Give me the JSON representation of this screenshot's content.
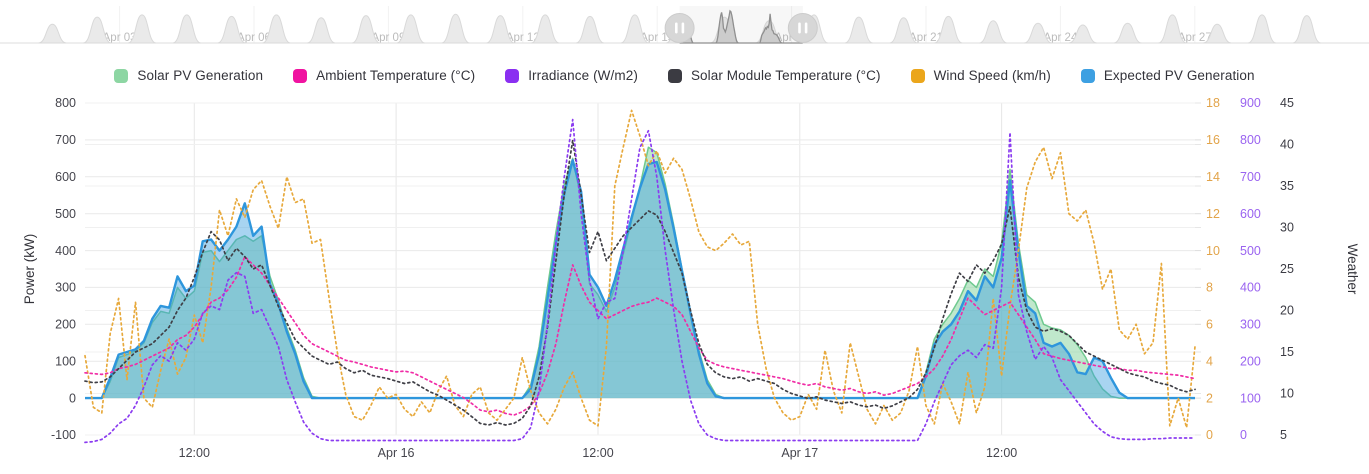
{
  "legend": {
    "items": [
      {
        "label": "Solar PV Generation",
        "color": "#8dd6a3"
      },
      {
        "label": "Ambient Temperature (°C)",
        "color": "#f013a0"
      },
      {
        "label": "Irradiance (W/m2)",
        "color": "#8a2ff1"
      },
      {
        "label": "Solar Module Temperature (°C)",
        "color": "#3b3b42"
      },
      {
        "label": "Wind Speed (km/h)",
        "color": "#eba61b"
      },
      {
        "label": "Expected PV Generation",
        "color": "#3da0e2"
      }
    ]
  },
  "chart_data": {
    "type": "line",
    "title": "",
    "x_axis": {
      "tick_labels": [
        "12:00",
        "Apr 16",
        "12:00",
        "Apr 17",
        "12:00"
      ],
      "tick_hours": [
        12,
        24,
        36,
        48,
        60
      ],
      "range_hours": [
        5.5,
        71.5
      ],
      "t_start": 5.5,
      "t_step": 0.5
    },
    "y_axes": {
      "power": {
        "title": "Power (kW)",
        "min": -100,
        "max": 800,
        "step": 100,
        "label_color": "#45454d",
        "side": "left"
      },
      "wind": {
        "title": "Wind Speed (km/h)",
        "min": 0,
        "max": 18,
        "step": 2,
        "label_color": "#e2a44a",
        "side": "right"
      },
      "irradiance": {
        "title": "Irradiance (W/m2)",
        "min": 0,
        "max": 900,
        "step": 100,
        "label_color": "#9a63f0",
        "side": "right"
      },
      "weather": {
        "title": "Weather",
        "min": 5,
        "max": 45,
        "step": 5,
        "label_color": "#3c3c44",
        "side": "right"
      }
    },
    "series": [
      {
        "name": "Solar PV Generation",
        "axis": "power",
        "style": "area",
        "line_color": "#6fc98f",
        "fill_color": "rgba(141,214,163,0.55)",
        "values": [
          0,
          0,
          0,
          45,
          110,
          118,
          128,
          150,
          205,
          235,
          230,
          300,
          270,
          290,
          395,
          400,
          370,
          400,
          430,
          440,
          425,
          440,
          330,
          265,
          190,
          130,
          55,
          5,
          0,
          0,
          0,
          0,
          0,
          0,
          0,
          0,
          0,
          0,
          0,
          0,
          0,
          0,
          0,
          0,
          0,
          0,
          0,
          0,
          0,
          0,
          0,
          0,
          0,
          35,
          140,
          300,
          450,
          580,
          650,
          540,
          310,
          280,
          235,
          300,
          390,
          480,
          575,
          680,
          665,
          580,
          470,
          350,
          235,
          130,
          50,
          10,
          0,
          0,
          0,
          0,
          0,
          0,
          0,
          0,
          0,
          0,
          0,
          0,
          0,
          0,
          0,
          0,
          0,
          0,
          0,
          0,
          0,
          0,
          0,
          0,
          70,
          160,
          200,
          230,
          270,
          320,
          300,
          350,
          330,
          420,
          620,
          420,
          280,
          260,
          200,
          190,
          185,
          170,
          145,
          110,
          60,
          25,
          5,
          0,
          0,
          0,
          0,
          0,
          0,
          0,
          0,
          0,
          0
        ]
      },
      {
        "name": "Expected PV Generation",
        "axis": "power",
        "style": "area",
        "line_color": "#2e96dc",
        "fill_color": "rgba(62,160,224,0.45)",
        "values": [
          0,
          0,
          0,
          55,
          118,
          125,
          132,
          155,
          215,
          250,
          245,
          330,
          290,
          305,
          425,
          430,
          400,
          430,
          465,
          528,
          440,
          465,
          310,
          255,
          180,
          120,
          45,
          0,
          0,
          0,
          0,
          0,
          0,
          0,
          0,
          0,
          0,
          0,
          0,
          0,
          0,
          0,
          0,
          0,
          0,
          0,
          0,
          0,
          0,
          0,
          0,
          0,
          0,
          25,
          120,
          270,
          420,
          555,
          645,
          560,
          335,
          300,
          250,
          320,
          405,
          490,
          570,
          635,
          640,
          565,
          460,
          345,
          230,
          120,
          40,
          5,
          0,
          0,
          0,
          0,
          0,
          0,
          0,
          0,
          0,
          0,
          0,
          0,
          0,
          0,
          0,
          0,
          0,
          0,
          0,
          0,
          0,
          0,
          0,
          0,
          60,
          145,
          180,
          200,
          235,
          290,
          265,
          330,
          300,
          380,
          590,
          400,
          250,
          230,
          150,
          140,
          150,
          120,
          70,
          65,
          110,
          100,
          55,
          15,
          0,
          0,
          0,
          0,
          0,
          0,
          0,
          0,
          0
        ]
      },
      {
        "name": "Wind Speed (km/h)",
        "axis": "wind",
        "style": "dotted",
        "line_color": "#e7a93c",
        "values": [
          4.3,
          1.5,
          1.2,
          5.5,
          7.4,
          3,
          7.2,
          2,
          1.5,
          3.5,
          5.2,
          3.3,
          4.2,
          6.5,
          5,
          8,
          12.2,
          10.8,
          12.8,
          11.8,
          13.3,
          13.8,
          12.4,
          11.2,
          14,
          12.6,
          12.8,
          10.4,
          10.6,
          7.5,
          4.5,
          2.2,
          1,
          0.8,
          1.6,
          2.6,
          2,
          2.2,
          1.4,
          1,
          1.8,
          1.2,
          2.4,
          3.2,
          1.6,
          1,
          2.2,
          2.6,
          1.2,
          0.8,
          1.4,
          2,
          4.2,
          2.4,
          1.2,
          0.6,
          1.4,
          2.6,
          3.4,
          2,
          0.8,
          0.5,
          4.8,
          13.5,
          15.6,
          17.6,
          16.2,
          14.6,
          15.4,
          14.2,
          15,
          14.4,
          12.8,
          11,
          10.2,
          10,
          10.4,
          10.9,
          10.3,
          10.5,
          6,
          3.6,
          2,
          1.2,
          0.8,
          1,
          2.2,
          1.4,
          4.6,
          2.4,
          1.2,
          5,
          3.2,
          1.4,
          0.6,
          1.6,
          0.8,
          1.2,
          2.4,
          4.8,
          1.6,
          0.6,
          2.8,
          1.8,
          0.6,
          3.4,
          1.2,
          2.6,
          7.4,
          3.2,
          7,
          10,
          13.4,
          14.8,
          15.6,
          13.9,
          15.3,
          12,
          11.6,
          12.2,
          10.4,
          7.9,
          9,
          5.7,
          5.2,
          6,
          4.4,
          5,
          9.3,
          0.5,
          2,
          0.4,
          4.8
        ]
      },
      {
        "name": "Ambient Temperature (°C)",
        "axis": "weather",
        "style": "dotted",
        "line_color": "#f02da6",
        "values": [
          12.5,
          12.4,
          12.3,
          12.5,
          13,
          13.2,
          13.5,
          14,
          14.5,
          15,
          15.5,
          16.5,
          17,
          18,
          19.5,
          21,
          21.5,
          22.5,
          24,
          26.5,
          25.5,
          24.5,
          23,
          21.5,
          20,
          18.5,
          17,
          16,
          15.5,
          15,
          14.5,
          14,
          13.8,
          13.5,
          13.2,
          13,
          12.8,
          12.6,
          12.7,
          12.5,
          12,
          11.5,
          11,
          10.5,
          10,
          9.5,
          8.8,
          8,
          7.8,
          8,
          7.6,
          7.4,
          7.8,
          8.5,
          10,
          12.5,
          16,
          21,
          25.5,
          23,
          21,
          20,
          19,
          19.5,
          20,
          20.5,
          20.8,
          21,
          21.5,
          21,
          20.5,
          19.5,
          17.5,
          15.5,
          14,
          13.5,
          13.2,
          13,
          12.8,
          12.6,
          12.4,
          12.2,
          12,
          11.8,
          11.5,
          11.2,
          11,
          11.2,
          10.8,
          10.6,
          10.4,
          10.6,
          10.2,
          10,
          10.2,
          9.8,
          10,
          10.4,
          10.8,
          11.2,
          12,
          13,
          14.5,
          16.5,
          19,
          21.5,
          20.5,
          19.5,
          20,
          20.5,
          21,
          19.5,
          18,
          16.5,
          14.8,
          14.5,
          14.2,
          14,
          13.8,
          13.6,
          13.4,
          13.2,
          13,
          13,
          12.8,
          12.8,
          12.6,
          12.5,
          12.4,
          12.3,
          12.2,
          12,
          11.8
        ]
      },
      {
        "name": "Solar Module Temperature (°C)",
        "axis": "weather",
        "style": "dotted",
        "line_color": "#3f3f46",
        "values": [
          11.5,
          11.3,
          11.4,
          12,
          13,
          14,
          15,
          15.5,
          16,
          17,
          18,
          20,
          21.5,
          24,
          27,
          29.5,
          28.5,
          26,
          27.5,
          26.5,
          25,
          25.5,
          23,
          20.5,
          18.5,
          16.5,
          15.5,
          14.5,
          14,
          13.5,
          13.8,
          13,
          12.5,
          12.8,
          12.2,
          12,
          11.8,
          11.5,
          11.2,
          11.4,
          10.8,
          10.2,
          9.8,
          9.2,
          8.6,
          8,
          7.2,
          6.4,
          6.2,
          6.5,
          6.2,
          6.4,
          7,
          8.5,
          12,
          18,
          26,
          34,
          40.5,
          34,
          27,
          29.5,
          26,
          27.5,
          29,
          30,
          31,
          32,
          31.5,
          29.5,
          27,
          24.5,
          20,
          16,
          13.5,
          12.5,
          12,
          11.8,
          12,
          11.5,
          11.8,
          11.5,
          11.2,
          10.5,
          10,
          9.7,
          9.4,
          9.6,
          9.2,
          9,
          8.8,
          9,
          8.6,
          8.4,
          8.6,
          8.2,
          8.5,
          9,
          9.5,
          10.5,
          12.5,
          15.5,
          19,
          22,
          24.5,
          23.5,
          25.5,
          24.5,
          26,
          28,
          32.5,
          24,
          20,
          18,
          17.5,
          17.8,
          17.5,
          17,
          16,
          15,
          14.5,
          14,
          13.5,
          13,
          12.5,
          12.2,
          12,
          11.5,
          11.2,
          11,
          10.5,
          10.2,
          10.5
        ]
      },
      {
        "name": "Irradiance (W/m2)",
        "axis": "irradiance",
        "style": "dotted",
        "line_color": "#8b3cf0",
        "values": [
          -20,
          -18,
          -12,
          5,
          30,
          45,
          80,
          130,
          190,
          215,
          200,
          250,
          230,
          260,
          330,
          350,
          340,
          420,
          440,
          430,
          330,
          340,
          290,
          240,
          150,
          90,
          35,
          5,
          -10,
          -15,
          -15,
          -15,
          -15,
          -15,
          -15,
          -15,
          -15,
          -15,
          -15,
          -15,
          -15,
          -15,
          -15,
          -15,
          -15,
          -15,
          -15,
          -15,
          -15,
          -15,
          -15,
          -15,
          -10,
          20,
          120,
          300,
          520,
          700,
          855,
          600,
          420,
          315,
          360,
          370,
          500,
          640,
          780,
          825,
          700,
          500,
          340,
          200,
          95,
          30,
          0,
          -10,
          -15,
          -15,
          -15,
          -15,
          -15,
          -15,
          -15,
          -15,
          -15,
          -15,
          -15,
          -15,
          -15,
          -15,
          -15,
          -15,
          -15,
          -15,
          -15,
          -15,
          -15,
          -15,
          -15,
          -15,
          30,
          90,
          140,
          190,
          215,
          230,
          210,
          245,
          235,
          400,
          820,
          380,
          280,
          205,
          240,
          210,
          150,
          120,
          90,
          60,
          30,
          10,
          -5,
          -10,
          -12,
          -12,
          -12,
          -10,
          -10,
          -8,
          -8,
          -8,
          -8
        ]
      }
    ],
    "navigator": {
      "tick_labels": [
        "Apr 03",
        "Apr 06",
        "Apr 09",
        "Apr 12",
        "Apr 15",
        "Apr 18",
        "Apr 21",
        "Apr 24",
        "Apr 27"
      ],
      "tick_days": [
        2,
        5,
        8,
        11,
        14,
        17,
        20,
        23,
        26
      ],
      "window_days": [
        14.5,
        17.25
      ],
      "day_amplitudes": [
        0.52,
        0.72,
        0.78,
        0.78,
        0.74,
        0.78,
        0.7,
        0.76,
        0.78,
        0.8,
        0.76,
        0.78,
        0.74,
        0.78,
        0.55,
        0.72,
        0.62,
        0.78,
        0.72,
        0.7,
        0.74,
        0.62,
        0.55,
        0.5,
        0.55,
        0.78,
        0.52,
        0.78,
        0.76
      ]
    }
  }
}
